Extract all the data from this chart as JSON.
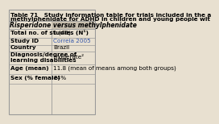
{
  "title_line1": "Table 71   Study information table for trials included in the a",
  "title_line2": "methylphenidate for ADHD in children and young people wit",
  "column_header": "Risperidone versus methylphenidate",
  "rows": [
    [
      "Total no. of studies (N¹)",
      "1 (46)"
    ],
    [
      "Study ID",
      "Correia 2005"
    ],
    [
      "Country",
      "Brazil"
    ],
    [
      "Diagnosis/degree of\nlearning disabilities",
      "moderate²"
    ],
    [
      "Age (mean)",
      "11.8 (mean of means among both groups)"
    ],
    [
      "Sex (% female)",
      "24%"
    ]
  ],
  "bg_color": "#e8e0d0",
  "header_bg": "#c8bfaf",
  "border_color": "#999999",
  "title_fontsize": 5.2,
  "header_fontsize": 5.5,
  "row_fontsize": 5.2,
  "row_tops": [
    108,
    97,
    88,
    80,
    64,
    52,
    40
  ]
}
